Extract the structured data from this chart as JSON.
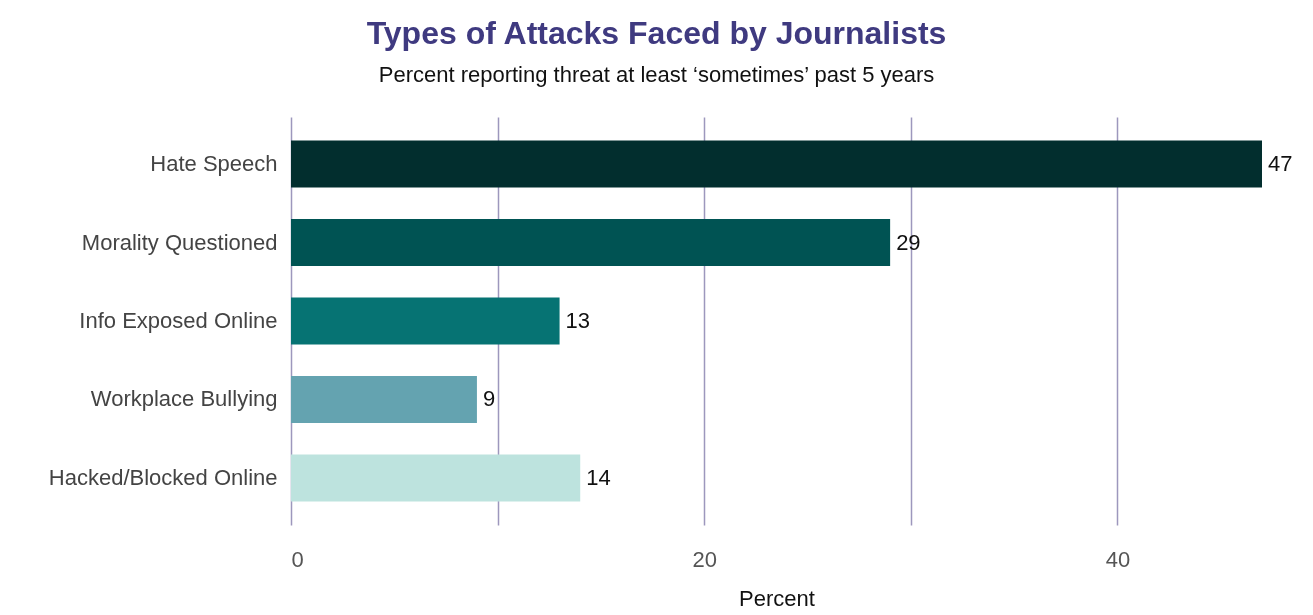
{
  "chart_data": {
    "type": "bar",
    "orientation": "horizontal",
    "title": "Types of Attacks Faced by Journalists",
    "subtitle": "Percent reporting threat at least ‘sometimes’ past 5 years",
    "xlabel": "Percent",
    "categories": [
      "Hate Speech",
      "Morality Questioned",
      "Info Exposed Online",
      "Workplace Bullying",
      "Hacked/Blocked Online"
    ],
    "values": [
      47,
      29,
      13,
      9,
      14
    ],
    "colors": [
      "#022e2e",
      "#005353",
      "#067373",
      "#64a3b0",
      "#bde3de"
    ],
    "xlim": [
      0,
      47
    ],
    "xticks": [
      0,
      {
        "value": 10,
        "label": null
      },
      20,
      {
        "value": 30,
        "label": null
      },
      40
    ],
    "grid": "x",
    "data_labels": true
  }
}
